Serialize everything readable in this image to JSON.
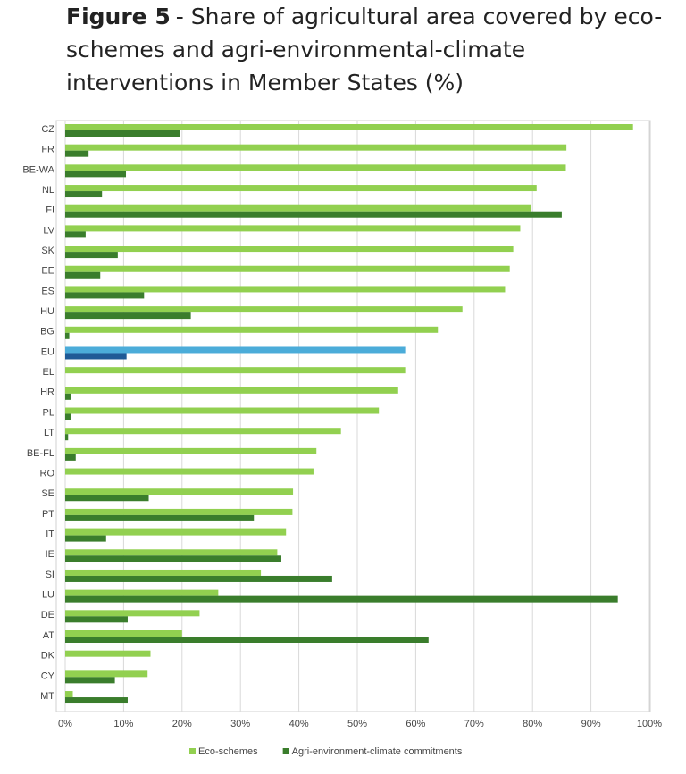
{
  "chart_data": {
    "type": "hbar",
    "figure_label": "Figure 5",
    "title": "- Share of agricultural area covered by eco-schemes and agri-environmental-climate interventions in Member States (%)",
    "categories": [
      "CZ",
      "FR",
      "BE-WA",
      "NL",
      "FI",
      "LV",
      "SK",
      "EE",
      "ES",
      "HU",
      "BG",
      "EU",
      "EL",
      "HR",
      "PL",
      "LT",
      "BE-FL",
      "RO",
      "SE",
      "PT",
      "IT",
      "IE",
      "SI",
      "LU",
      "DE",
      "AT",
      "DK",
      "CY",
      "MT"
    ],
    "series": [
      {
        "name": "Eco-schemes",
        "color": "#92d050",
        "values": [
          97.2,
          85.8,
          85.7,
          80.7,
          79.8,
          77.9,
          76.7,
          76.1,
          75.3,
          68,
          63.8,
          58.2,
          58.2,
          57,
          53.7,
          47.2,
          43,
          42.5,
          39,
          38.9,
          37.8,
          36.3,
          33.5,
          26.2,
          23,
          20,
          14.6,
          14.1,
          1.3
        ]
      },
      {
        "name": "Agri-environment-climate commitments",
        "color": "#3a7d2c",
        "values": [
          19.7,
          4,
          10.4,
          6.3,
          85,
          3.5,
          9,
          6,
          13.5,
          21.5,
          0.7,
          10.5,
          0,
          1,
          1,
          0.5,
          1.8,
          0,
          14.3,
          32.3,
          7,
          37,
          45.7,
          94.6,
          10.7,
          62.2,
          0,
          8.5,
          10.7
        ]
      }
    ],
    "highlight": {
      "category_index": 11,
      "colors": [
        "#4bacd9",
        "#1f5a96"
      ]
    },
    "xlim": [
      0,
      100
    ],
    "xticks": [
      {
        "value": 0,
        "label": "0%"
      },
      {
        "value": 10,
        "label": "10%"
      },
      {
        "value": 20,
        "label": "20%"
      },
      {
        "value": 30,
        "label": "30%"
      },
      {
        "value": 40,
        "label": "40%"
      },
      {
        "value": 50,
        "label": "50%"
      },
      {
        "value": 60,
        "label": "60%"
      },
      {
        "value": 70,
        "label": "70%"
      },
      {
        "value": 80,
        "label": "80%"
      },
      {
        "value": 90,
        "label": "90%"
      },
      {
        "value": 100,
        "label": "100%"
      }
    ],
    "grid": true
  }
}
